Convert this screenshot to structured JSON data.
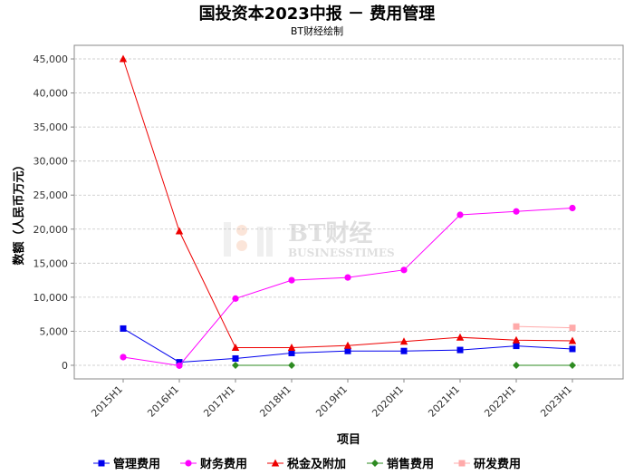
{
  "chart_data": {
    "type": "line",
    "title": "国投资本2023中报 － 费用管理",
    "subtitle": "BT财经绘制",
    "xlabel": "项目",
    "ylabel": "数额（人民币万元）",
    "categories": [
      "2015H1",
      "2016H1",
      "2017H1",
      "2018H1",
      "2019H1",
      "2020H1",
      "2021H1",
      "2022H1",
      "2023H1"
    ],
    "ylim": [
      -2000,
      47000
    ],
    "yticks": [
      0,
      5000,
      10000,
      15000,
      20000,
      25000,
      30000,
      35000,
      40000,
      45000
    ],
    "ytick_labels": [
      "0",
      "5,000",
      "10,000",
      "15,000",
      "20,000",
      "25,000",
      "30,000",
      "35,000",
      "40,000",
      "45,000"
    ],
    "grid": true,
    "legend_position": "bottom",
    "watermark": {
      "main": "BT财经",
      "sub": "BUSINESSTIMES"
    },
    "series": [
      {
        "name": "管理费用",
        "color": "#0000ee",
        "marker": "square",
        "values": [
          5400,
          450,
          1000,
          1800,
          2100,
          2100,
          2250,
          2850,
          2400
        ]
      },
      {
        "name": "财务费用",
        "color": "#ff00ff",
        "marker": "circle",
        "values": [
          1200,
          -50,
          9800,
          12500,
          12900,
          14000,
          22100,
          22600,
          23100
        ]
      },
      {
        "name": "税金及附加",
        "color": "#ee0000",
        "marker": "triangle",
        "values": [
          45000,
          19700,
          2600,
          2600,
          2900,
          3500,
          4100,
          3700,
          3600
        ]
      },
      {
        "name": "销售费用",
        "color": "#2e8b22",
        "marker": "diamond",
        "values": [
          null,
          null,
          0,
          0,
          null,
          null,
          null,
          0,
          0
        ]
      },
      {
        "name": "研发费用",
        "color": "#ffaaaa",
        "marker": "square",
        "values": [
          null,
          null,
          null,
          null,
          null,
          null,
          null,
          5700,
          5500
        ]
      }
    ]
  }
}
